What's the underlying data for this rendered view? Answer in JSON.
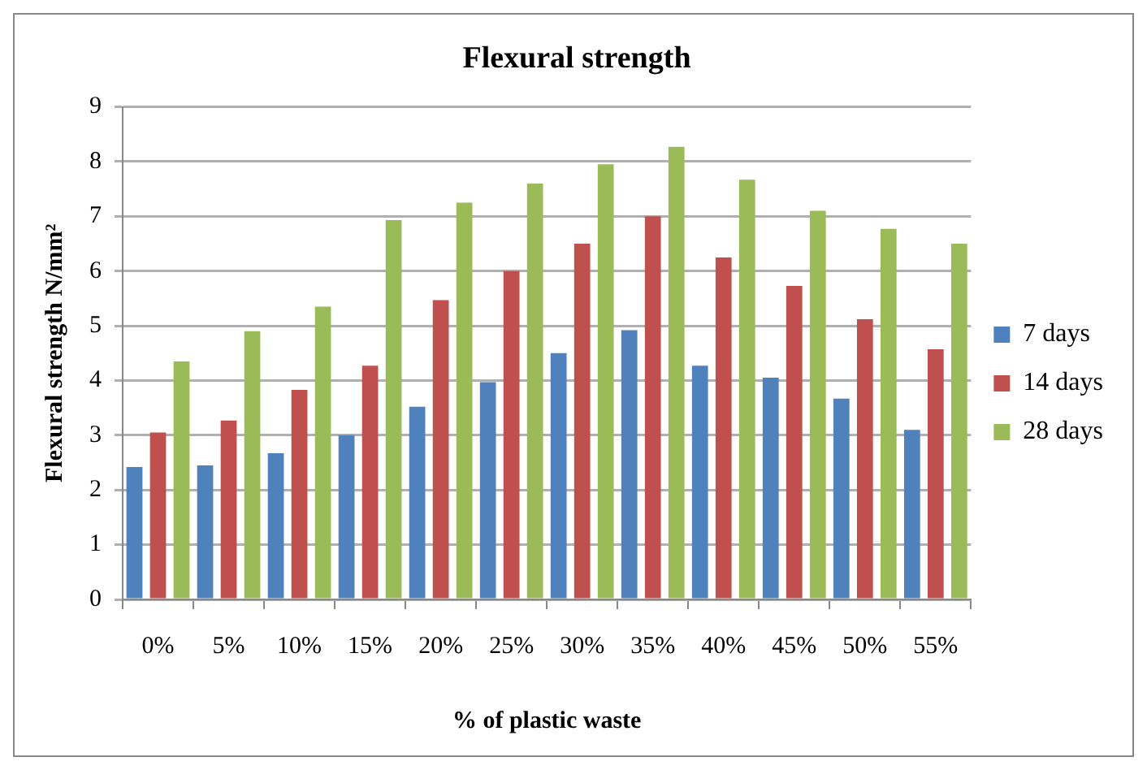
{
  "chart_data": {
    "type": "bar",
    "title": "Flexural strength",
    "xlabel": "% of plastic waste",
    "ylabel": "Flexural strength N/mm²",
    "categories": [
      "0%",
      "5%",
      "10%",
      "15%",
      "20%",
      "25%",
      "30%",
      "35%",
      "40%",
      "45%",
      "50%",
      "55%"
    ],
    "series": [
      {
        "name": "7 days",
        "color": "#4f81bd",
        "values": [
          2.42,
          2.45,
          2.67,
          3.0,
          3.52,
          3.97,
          4.5,
          4.92,
          4.27,
          4.05,
          3.67,
          3.1
        ]
      },
      {
        "name": "14 days",
        "color": "#c0504d",
        "values": [
          3.05,
          3.27,
          3.83,
          4.27,
          5.47,
          6.0,
          6.5,
          7.0,
          6.25,
          5.73,
          5.12,
          4.57
        ]
      },
      {
        "name": "28 days",
        "color": "#9bbb59",
        "values": [
          4.35,
          4.9,
          5.35,
          6.93,
          7.25,
          7.6,
          7.95,
          8.27,
          7.67,
          7.1,
          6.77,
          6.5
        ]
      }
    ],
    "ylim": [
      0,
      9
    ],
    "yticks": [
      0,
      1,
      2,
      3,
      4,
      5,
      6,
      7,
      8,
      9
    ],
    "grid": "y",
    "legend": "right"
  }
}
